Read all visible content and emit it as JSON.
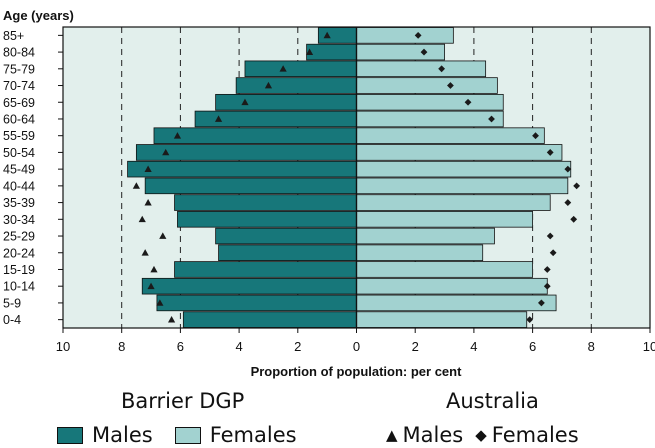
{
  "chart_data": {
    "type": "bar",
    "title": "",
    "ylabel": "Age (years)",
    "xlabel": "Proportion of population: per cent",
    "xlim": [
      -10,
      10
    ],
    "x_ticks": [
      10,
      8,
      6,
      4,
      2,
      0,
      2,
      4,
      6,
      8,
      10
    ],
    "categories": [
      "0-4",
      "5-9",
      "10-14",
      "15-19",
      "20-24",
      "25-29",
      "30-34",
      "35-39",
      "40-44",
      "45-49",
      "50-54",
      "55-59",
      "60-64",
      "65-69",
      "70-74",
      "75-79",
      "80-84",
      "85+"
    ],
    "series": [
      {
        "name": "Males",
        "group": "Barrier DGP",
        "kind": "bar",
        "side": "left",
        "values": [
          5.9,
          6.8,
          7.3,
          6.2,
          4.7,
          4.8,
          6.1,
          6.2,
          7.2,
          7.8,
          7.5,
          6.9,
          5.5,
          4.8,
          4.1,
          3.8,
          1.7,
          1.3
        ]
      },
      {
        "name": "Females",
        "group": "Barrier DGP",
        "kind": "bar",
        "side": "right",
        "values": [
          5.8,
          6.8,
          6.5,
          6.0,
          4.3,
          4.7,
          6.0,
          6.6,
          7.2,
          7.3,
          7.0,
          6.4,
          5.0,
          5.0,
          4.8,
          4.4,
          3.0,
          3.3
        ]
      },
      {
        "name": "Males",
        "group": "Australia",
        "kind": "marker",
        "marker": "triangle",
        "side": "left",
        "values": [
          6.3,
          6.7,
          7.0,
          6.9,
          7.2,
          6.6,
          7.3,
          7.1,
          7.5,
          7.1,
          6.5,
          6.1,
          4.7,
          3.8,
          3.0,
          2.5,
          1.6,
          1.0
        ]
      },
      {
        "name": "Females",
        "group": "Australia",
        "kind": "marker",
        "marker": "diamond",
        "side": "right",
        "values": [
          5.9,
          6.3,
          6.5,
          6.5,
          6.7,
          6.6,
          7.4,
          7.2,
          7.5,
          7.2,
          6.6,
          6.1,
          4.6,
          3.8,
          3.2,
          2.9,
          2.3,
          2.1
        ]
      }
    ],
    "gridlines_at": [
      -8,
      -6,
      -4,
      -2,
      2,
      4,
      6,
      8
    ],
    "grid": "dashed-vertical",
    "legend": "bottom",
    "colors": {
      "background": "#e2efec",
      "male_bar": "#17777a",
      "female_bar": "#a2d2d0",
      "marker": "#1a1a1a",
      "axis": "#111111"
    }
  },
  "legend": {
    "left_heading": "Barrier DGP",
    "right_heading": "Australia",
    "males_label": "Males",
    "females_label": "Females",
    "au_males_label": "Males",
    "au_females_label": "Females",
    "triangle_glyph": "▲",
    "diamond_glyph": "◆"
  }
}
